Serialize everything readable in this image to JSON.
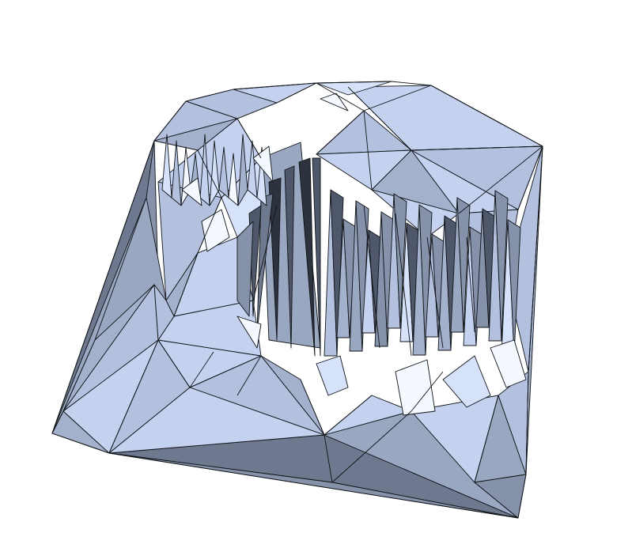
{
  "scene": {
    "subject": "triangulated-terrain-mesh",
    "background_color": "#ffffff",
    "edge_color": "#111418",
    "face_palette": {
      "white": "#f4f8ff",
      "pale": "#d6e2fa",
      "light": "#c4d2f0",
      "mid": "#b3c1df",
      "slate": "#a3b1cc",
      "gray": "#9aa7c0",
      "dark": "#8692aa",
      "deep": "#6e7990",
      "shadow": "#4f586b",
      "black": "#2c323e"
    }
  }
}
